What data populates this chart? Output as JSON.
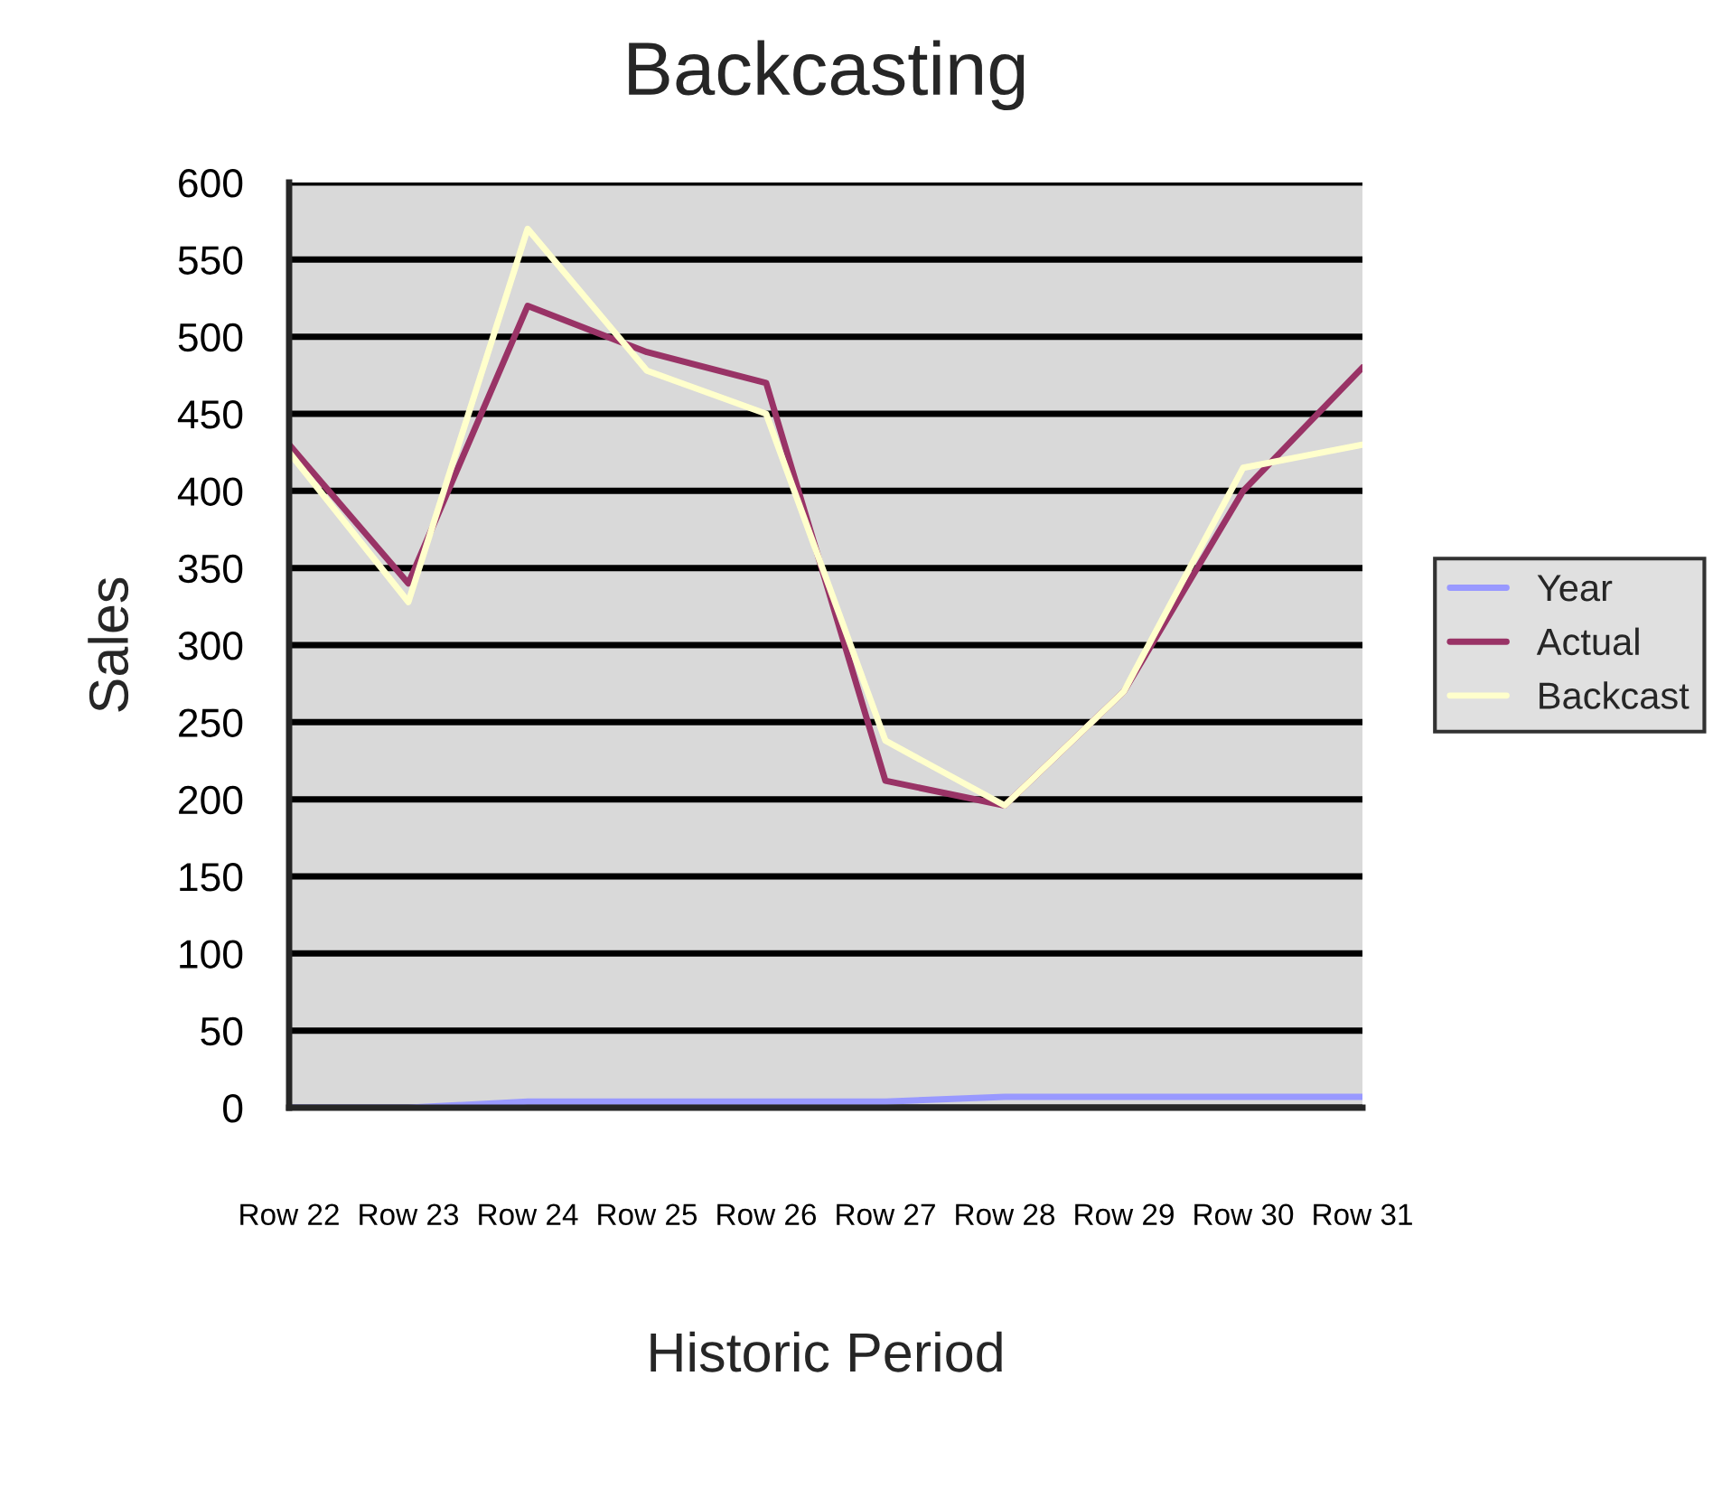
{
  "chart_data": {
    "type": "line",
    "title": "Backcasting",
    "xlabel": "Historic Period",
    "ylabel": "Sales",
    "categories": [
      "Row 22",
      "Row 23",
      "Row 24",
      "Row 25",
      "Row 26",
      "Row 27",
      "Row 28",
      "Row 29",
      "Row 30",
      "Row 31"
    ],
    "series": [
      {
        "name": "Year",
        "color": "#9999ff",
        "values": [
          0,
          0,
          4,
          4,
          4,
          4,
          7,
          7,
          7,
          7
        ]
      },
      {
        "name": "Actual",
        "color": "#993366",
        "values": [
          430,
          340,
          520,
          490,
          470,
          212,
          196,
          270,
          400,
          480
        ]
      },
      {
        "name": "Backcast",
        "color": "#ffffcc",
        "values": [
          425,
          328,
          570,
          478,
          450,
          238,
          196,
          270,
          415,
          430
        ]
      }
    ],
    "ylim": [
      0,
      600
    ],
    "yticks": [
      0,
      50,
      100,
      150,
      200,
      250,
      300,
      350,
      400,
      450,
      500,
      550,
      600
    ],
    "grid": "y",
    "legend": "right",
    "marker": "none",
    "line_style": "solid"
  }
}
